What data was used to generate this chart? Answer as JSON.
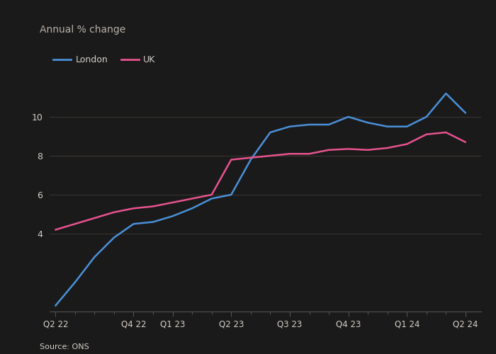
{
  "title": "Annual % change",
  "source": "Source: ONS",
  "legend": [
    "London",
    "UK"
  ],
  "london_color": "#4a90d9",
  "uk_color": "#e8538f",
  "background_color": "#1a1a1a",
  "plot_bg_color": "#1a1a1a",
  "grid_color": "#3a3530",
  "text_color": "#d4cfc9",
  "title_color": "#b8b0a8",
  "spine_color": "#555050",
  "x_labels": [
    "Q2 22",
    "Q4 22",
    "Q1 23",
    "Q2 23",
    "Q3 23",
    "Q4 23",
    "Q1 24",
    "Q2 24"
  ],
  "x_tick_positions": [
    0,
    4,
    6,
    9,
    12,
    15,
    18,
    21
  ],
  "ylim": [
    0,
    12
  ],
  "yticks": [
    4,
    6,
    8,
    10
  ],
  "london_x": [
    0,
    1,
    2,
    3,
    4,
    5,
    6,
    7,
    8,
    9,
    10,
    11,
    12,
    13,
    14,
    15,
    16,
    17,
    18,
    19,
    20,
    21
  ],
  "london_y": [
    0.3,
    1.5,
    2.8,
    3.8,
    4.5,
    4.6,
    4.9,
    5.3,
    5.8,
    6.0,
    7.8,
    9.2,
    9.5,
    9.6,
    9.6,
    10.0,
    9.7,
    9.5,
    9.5,
    10.0,
    11.2,
    10.2
  ],
  "uk_x": [
    0,
    1,
    2,
    3,
    4,
    5,
    6,
    7,
    8,
    9,
    10,
    11,
    12,
    13,
    14,
    15,
    16,
    17,
    18,
    19,
    20,
    21
  ],
  "uk_y": [
    4.2,
    4.5,
    4.8,
    5.1,
    5.3,
    5.4,
    5.6,
    5.8,
    6.0,
    7.8,
    7.9,
    8.0,
    8.1,
    8.1,
    8.3,
    8.35,
    8.3,
    8.4,
    8.6,
    9.1,
    9.2,
    8.7
  ]
}
